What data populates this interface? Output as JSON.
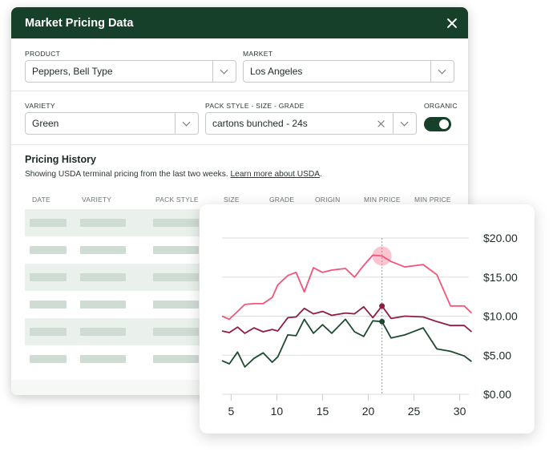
{
  "panel": {
    "title": "Market Pricing Data",
    "colors": {
      "header_bg": "#17402a",
      "accent": "#17402a"
    }
  },
  "filters": {
    "product": {
      "label": "PRODUCT",
      "value": "Peppers, Bell Type"
    },
    "market": {
      "label": "MARKET",
      "value": "Los Angeles"
    },
    "variety": {
      "label": "VARIETY",
      "value": "Green"
    },
    "pack_style": {
      "label": "PACK STYLE - SIZE - GRADE",
      "value": "cartons bunched - 24s"
    },
    "organic": {
      "label": "ORGANIC",
      "enabled": true
    }
  },
  "pricing_history": {
    "title": "Pricing History",
    "description": "Showing USDA terminal pricing from the last two weeks.",
    "link_text": "Learn more about USDA",
    "description_end": ".",
    "columns": [
      "DATE",
      "VARIETY",
      "PACK STYLE",
      "SIZE",
      "GRADE",
      "ORIGIN",
      "MIN PRICE",
      "MIN PRICE"
    ],
    "row_count": 6
  },
  "chart_data": {
    "type": "line",
    "title": "",
    "xlabel": "",
    "ylabel": "",
    "x_ticks": [
      5,
      10,
      15,
      20,
      25,
      30
    ],
    "y_ticks": [
      "$20.00",
      "$15.00",
      "$10.00",
      "$5.00",
      "$0.00"
    ],
    "xlim": [
      4,
      31
    ],
    "ylim": [
      0,
      20
    ],
    "grid": true,
    "highlight_x": 21.5,
    "x": [
      4,
      4.8,
      5.7,
      6.5,
      7.5,
      8.5,
      9.5,
      10.1,
      11.2,
      12.1,
      13,
      14,
      15,
      16,
      17.5,
      18.5,
      19.5,
      20.5,
      21.5,
      22.5,
      24,
      26,
      27.5,
      29,
      30.5,
      31.3
    ],
    "series": [
      {
        "color": "#f25579",
        "values": [
          10,
          9.6,
          10.6,
          11.5,
          11.6,
          11.6,
          12.4,
          14.0,
          15.2,
          15.6,
          13.1,
          16.2,
          15.6,
          15.9,
          16.1,
          15.0,
          16.5,
          17.8,
          17.7,
          17.0,
          16.3,
          16.6,
          15.3,
          11.3,
          11.3,
          10.4
        ]
      },
      {
        "color": "#8f1c43",
        "values": [
          8.1,
          7.9,
          8.6,
          7.8,
          8.5,
          8.0,
          8.3,
          8.1,
          9.8,
          9.9,
          11.0,
          10.3,
          10.6,
          10.1,
          10.4,
          10.3,
          11.2,
          9.8,
          11.3,
          9.7,
          10.0,
          9.9,
          9.3,
          8.8,
          8.8,
          8.0
        ]
      },
      {
        "color": "#1f4a32",
        "values": [
          4.3,
          3.9,
          5.4,
          3.5,
          4.6,
          5.3,
          4.1,
          4.8,
          7.6,
          7.5,
          9.6,
          7.8,
          8.9,
          7.8,
          9.6,
          8.0,
          7.4,
          9.4,
          9.3,
          7.2,
          7.6,
          8.5,
          5.8,
          5.5,
          4.9,
          4.2
        ]
      }
    ],
    "markers": [
      {
        "series": 0,
        "x": 21.5,
        "value": 17.7,
        "style": "halo"
      },
      {
        "series": 1,
        "x": 21.5,
        "value": 11.3,
        "style": "dot"
      },
      {
        "series": 2,
        "x": 21.5,
        "value": 9.3,
        "style": "dot"
      }
    ]
  }
}
